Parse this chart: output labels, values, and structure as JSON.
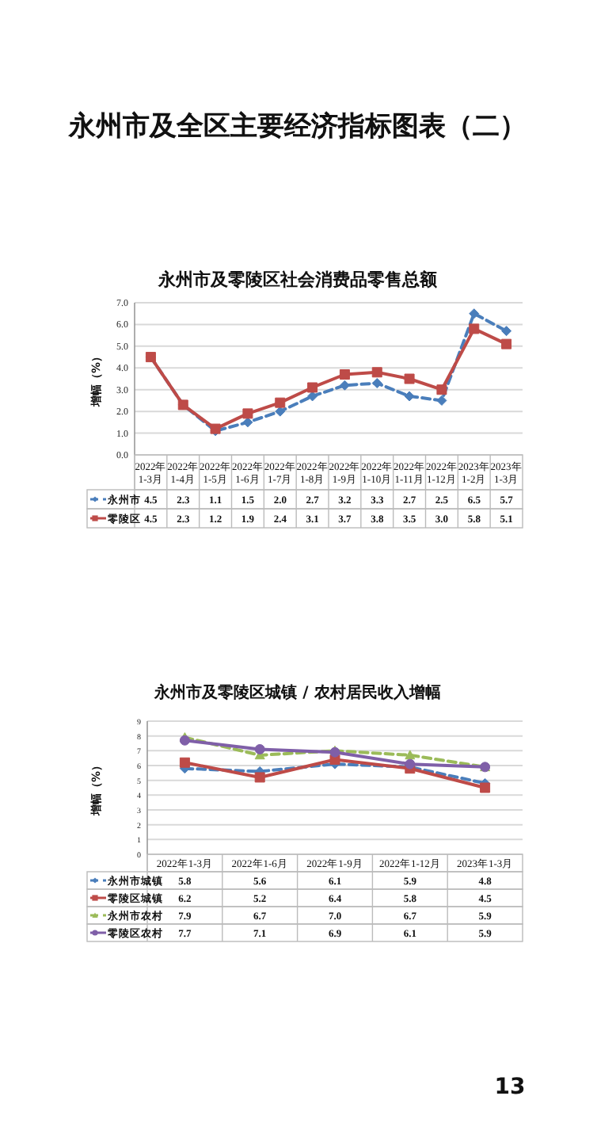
{
  "chart_data": [
    {
      "type": "line",
      "title": "永州市及零陵区社会消费品零售总额",
      "ylabel": "增幅（%）",
      "annotations": [
        "永州市及全区主要经济指标图表（二）"
      ],
      "categories": [
        "2022年 1-3月",
        "2022年 1-4月",
        "2022年 1-5月",
        "2022年 1-6月",
        "2022年 1-7月",
        "2022年 1-8月",
        "2022年 1-9月",
        "2022年 1-10月",
        "2022年 1-11月",
        "2022年 1-12月",
        "2023年 1-2月",
        "2023年 1-3月"
      ],
      "series": [
        {
          "name": "永州市",
          "color": "#4a7ebb",
          "marker": "diamond",
          "line_style": "dashed",
          "values": [
            4.5,
            2.3,
            1.1,
            1.5,
            2.0,
            2.7,
            3.2,
            3.3,
            2.7,
            2.5,
            6.5,
            5.7
          ],
          "value_labels": [
            "4.5",
            "2.3",
            "1.1",
            "1.5",
            "2.0",
            "2.7",
            "3.2",
            "3.3",
            "2.7",
            "2.5",
            "6.5",
            "5.7"
          ]
        },
        {
          "name": "零陵区",
          "color": "#be4b48",
          "marker": "square",
          "line_style": "solid",
          "values": [
            4.5,
            2.3,
            1.2,
            1.9,
            2.4,
            3.1,
            3.7,
            3.8,
            3.5,
            3.0,
            5.8,
            5.1
          ],
          "value_labels": [
            "4.5",
            "2.3",
            "1.2",
            "1.9",
            "2.4",
            "3.1",
            "3.7",
            "3.8",
            "3.5",
            "3.0",
            "5.8",
            "5.1"
          ]
        }
      ],
      "ylim": [
        0,
        7
      ],
      "yticks": [
        {
          "value": 0,
          "label": "0.0"
        },
        {
          "value": 1,
          "label": "1.0"
        },
        {
          "value": 2,
          "label": "2.0"
        },
        {
          "value": 3,
          "label": "3.0"
        },
        {
          "value": 4,
          "label": "4.0"
        },
        {
          "value": 5,
          "label": "5.0"
        },
        {
          "value": 6,
          "label": "6.0"
        },
        {
          "value": 7,
          "label": "7.0"
        }
      ],
      "grid": "y",
      "legend": "bottom"
    },
    {
      "type": "line",
      "title": "永州市及零陵区城镇 / 农村居民收入增幅",
      "ylabel": "增幅（%）",
      "annotations": [
        "13"
      ],
      "categories": [
        "2022年1-3月",
        "2022年1-6月",
        "2022年1-9月",
        "2022年1-12月",
        "2023年1-3月"
      ],
      "series": [
        {
          "name": "永州市城镇",
          "color": "#4a7ebb",
          "marker": "diamond",
          "line_style": "dashed",
          "values": [
            5.8,
            5.6,
            6.1,
            5.9,
            4.8
          ],
          "value_labels": [
            "5.8",
            "5.6",
            "6.1",
            "5.9",
            "4.8"
          ]
        },
        {
          "name": "零陵区城镇",
          "color": "#be4b48",
          "marker": "square",
          "line_style": "solid",
          "values": [
            6.2,
            5.2,
            6.4,
            5.8,
            4.5
          ],
          "value_labels": [
            "6.2",
            "5.2",
            "6.4",
            "5.8",
            "4.5"
          ]
        },
        {
          "name": "永州市农村",
          "color": "#9bbb59",
          "marker": "triangle",
          "line_style": "dashed",
          "values": [
            7.9,
            6.7,
            7.0,
            6.7,
            5.9
          ],
          "value_labels": [
            "7.9",
            "6.7",
            "7.0",
            "6.7",
            "5.9"
          ]
        },
        {
          "name": "零陵区农村",
          "color": "#7f5fa8",
          "marker": "circle",
          "line_style": "solid",
          "values": [
            7.7,
            7.1,
            6.9,
            6.1,
            5.9
          ],
          "value_labels": [
            "7.7",
            "7.1",
            "6.9",
            "6.1",
            "5.9"
          ]
        }
      ],
      "ylim": [
        0,
        9
      ],
      "yticks": [
        0,
        1,
        2,
        3,
        4,
        5,
        6,
        7,
        8,
        9
      ],
      "grid": "y",
      "legend": "bottom"
    }
  ]
}
